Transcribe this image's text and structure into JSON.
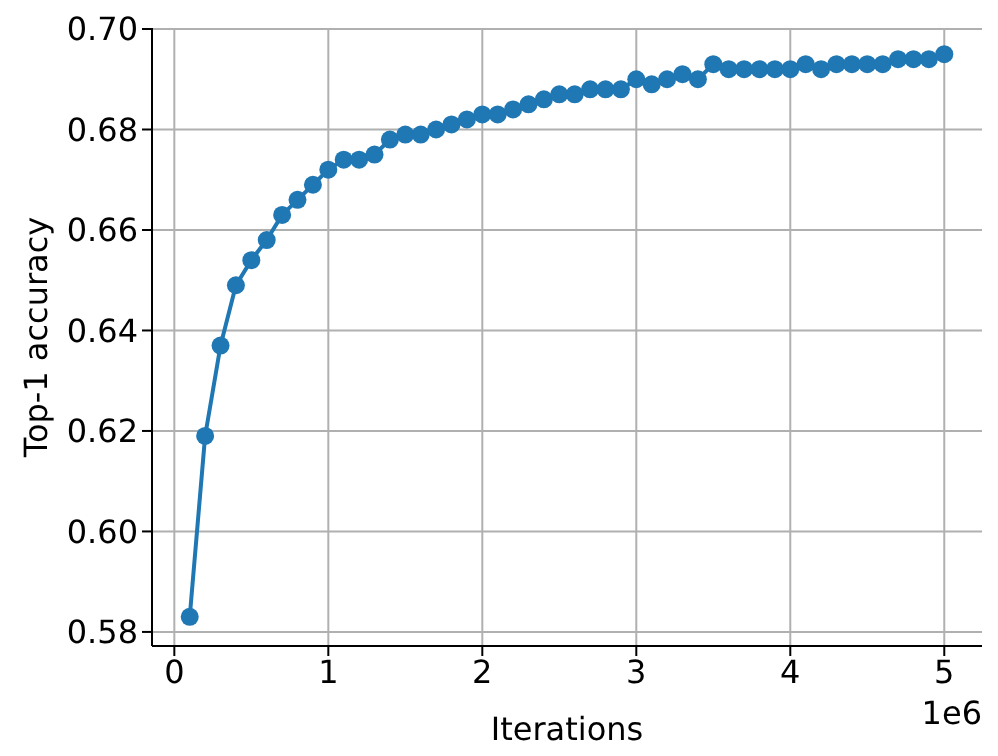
{
  "chart_data": {
    "type": "line",
    "xlabel": "Iterations",
    "ylabel": "Top-1 accuracy",
    "annotations": [
      "1e6"
    ],
    "x": [
      0.1,
      0.2,
      0.3,
      0.4,
      0.5,
      0.6,
      0.7,
      0.8,
      0.9,
      1.0,
      1.1,
      1.2,
      1.3,
      1.4,
      1.5,
      1.6,
      1.7,
      1.8,
      1.9,
      2.0,
      2.1,
      2.2,
      2.3,
      2.4,
      2.5,
      2.6,
      2.7,
      2.8,
      2.9,
      3.0,
      3.1,
      3.2,
      3.3,
      3.4,
      3.5,
      3.6,
      3.7,
      3.8,
      3.9,
      4.0,
      4.1,
      4.2,
      4.3,
      4.4,
      4.5,
      4.6,
      4.7,
      4.8,
      4.9,
      5.0
    ],
    "series": [
      {
        "color": "#1f77b4",
        "values": [
          0.583,
          0.619,
          0.637,
          0.649,
          0.654,
          0.658,
          0.663,
          0.666,
          0.669,
          0.672,
          0.674,
          0.674,
          0.675,
          0.678,
          0.679,
          0.679,
          0.68,
          0.681,
          0.682,
          0.683,
          0.683,
          0.684,
          0.685,
          0.686,
          0.687,
          0.687,
          0.688,
          0.688,
          0.688,
          0.69,
          0.689,
          0.69,
          0.691,
          0.69,
          0.693,
          0.692,
          0.692,
          0.692,
          0.692,
          0.692,
          0.693,
          0.692,
          0.693,
          0.693,
          0.693,
          0.693,
          0.694,
          0.694,
          0.694,
          0.695
        ]
      }
    ],
    "xlim": [
      -0.145,
      5.245
    ],
    "xticks": [
      0,
      1,
      2,
      3,
      4,
      5
    ],
    "ylim": [
      0.5772,
      0.7002
    ],
    "yticks": [
      {
        "value": 0.58,
        "label": "0.58"
      },
      {
        "value": 0.6,
        "label": "0.60"
      },
      {
        "value": 0.62,
        "label": "0.62"
      },
      {
        "value": 0.64,
        "label": "0.64"
      },
      {
        "value": 0.66,
        "label": "0.66"
      },
      {
        "value": 0.68,
        "label": "0.68"
      },
      {
        "value": 0.7,
        "label": "0.70"
      }
    ],
    "grid": true,
    "marker": "circle",
    "line_style": "solid"
  }
}
